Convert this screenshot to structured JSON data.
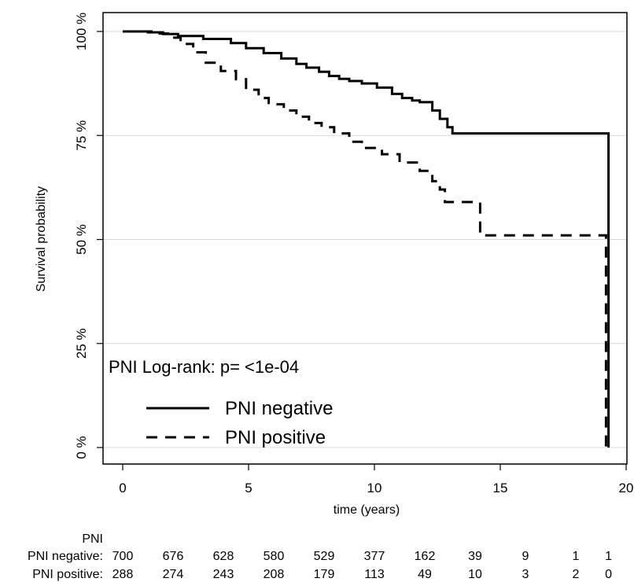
{
  "chart_data": {
    "type": "line",
    "subtype": "kaplan-meier",
    "xlabel": "time (years)",
    "ylabel": "Survival probability",
    "xlim": [
      0,
      20
    ],
    "ylim": [
      0,
      1
    ],
    "x_ticks": [
      0,
      5,
      10,
      15,
      20
    ],
    "y_ticks": [
      0,
      0.25,
      0.5,
      0.75,
      1.0
    ],
    "y_tick_labels": [
      "0 %",
      "25 %",
      "50 %",
      "75 %",
      "100 %"
    ],
    "grid": "horizontal",
    "annotation": "PNI  Log-rank: p= <1e-04",
    "legend_position": "bottom-left",
    "series": [
      {
        "name": "PNI negative",
        "line_style": "solid",
        "x": [
          0,
          1.0,
          1.6,
          2.2,
          3.2,
          4.3,
          4.9,
          5.6,
          6.3,
          6.9,
          7.3,
          7.8,
          8.2,
          8.6,
          9.0,
          9.5,
          10.1,
          10.7,
          11.1,
          11.5,
          11.8,
          12.3,
          12.6,
          12.9,
          13.1,
          19.3,
          19.3
        ],
        "y": [
          1.0,
          0.998,
          0.994,
          0.989,
          0.982,
          0.972,
          0.96,
          0.948,
          0.935,
          0.922,
          0.913,
          0.903,
          0.893,
          0.886,
          0.881,
          0.875,
          0.865,
          0.85,
          0.84,
          0.834,
          0.83,
          0.81,
          0.79,
          0.77,
          0.755,
          0.755,
          0.0
        ]
      },
      {
        "name": "PNI positive",
        "line_style": "dashed",
        "x": [
          0,
          1.2,
          1.8,
          2.3,
          2.8,
          3.3,
          3.9,
          4.5,
          4.9,
          5.4,
          5.8,
          6.4,
          6.9,
          7.4,
          7.9,
          8.4,
          9.0,
          9.5,
          10.3,
          11.0,
          11.8,
          12.3,
          12.6,
          12.8,
          14.2,
          19.2,
          19.2
        ],
        "y": [
          1.0,
          0.995,
          0.985,
          0.97,
          0.95,
          0.925,
          0.905,
          0.885,
          0.86,
          0.84,
          0.825,
          0.81,
          0.795,
          0.78,
          0.77,
          0.755,
          0.735,
          0.72,
          0.705,
          0.685,
          0.665,
          0.64,
          0.62,
          0.59,
          0.51,
          0.51,
          0.0
        ]
      }
    ],
    "risk_table": {
      "title": "PNI",
      "times": [
        0,
        2,
        4,
        6,
        8,
        10,
        12,
        14,
        16,
        18,
        19.3
      ],
      "rows": [
        {
          "label": "PNI negative:",
          "values": [
            "700",
            "676",
            "628",
            "580",
            "529",
            "377",
            "162",
            "39",
            "9",
            "1",
            "1"
          ]
        },
        {
          "label": "PNI positive:",
          "values": [
            "288",
            "274",
            "243",
            "208",
            "179",
            "113",
            "49",
            "10",
            "3",
            "2",
            "0"
          ]
        }
      ]
    }
  }
}
